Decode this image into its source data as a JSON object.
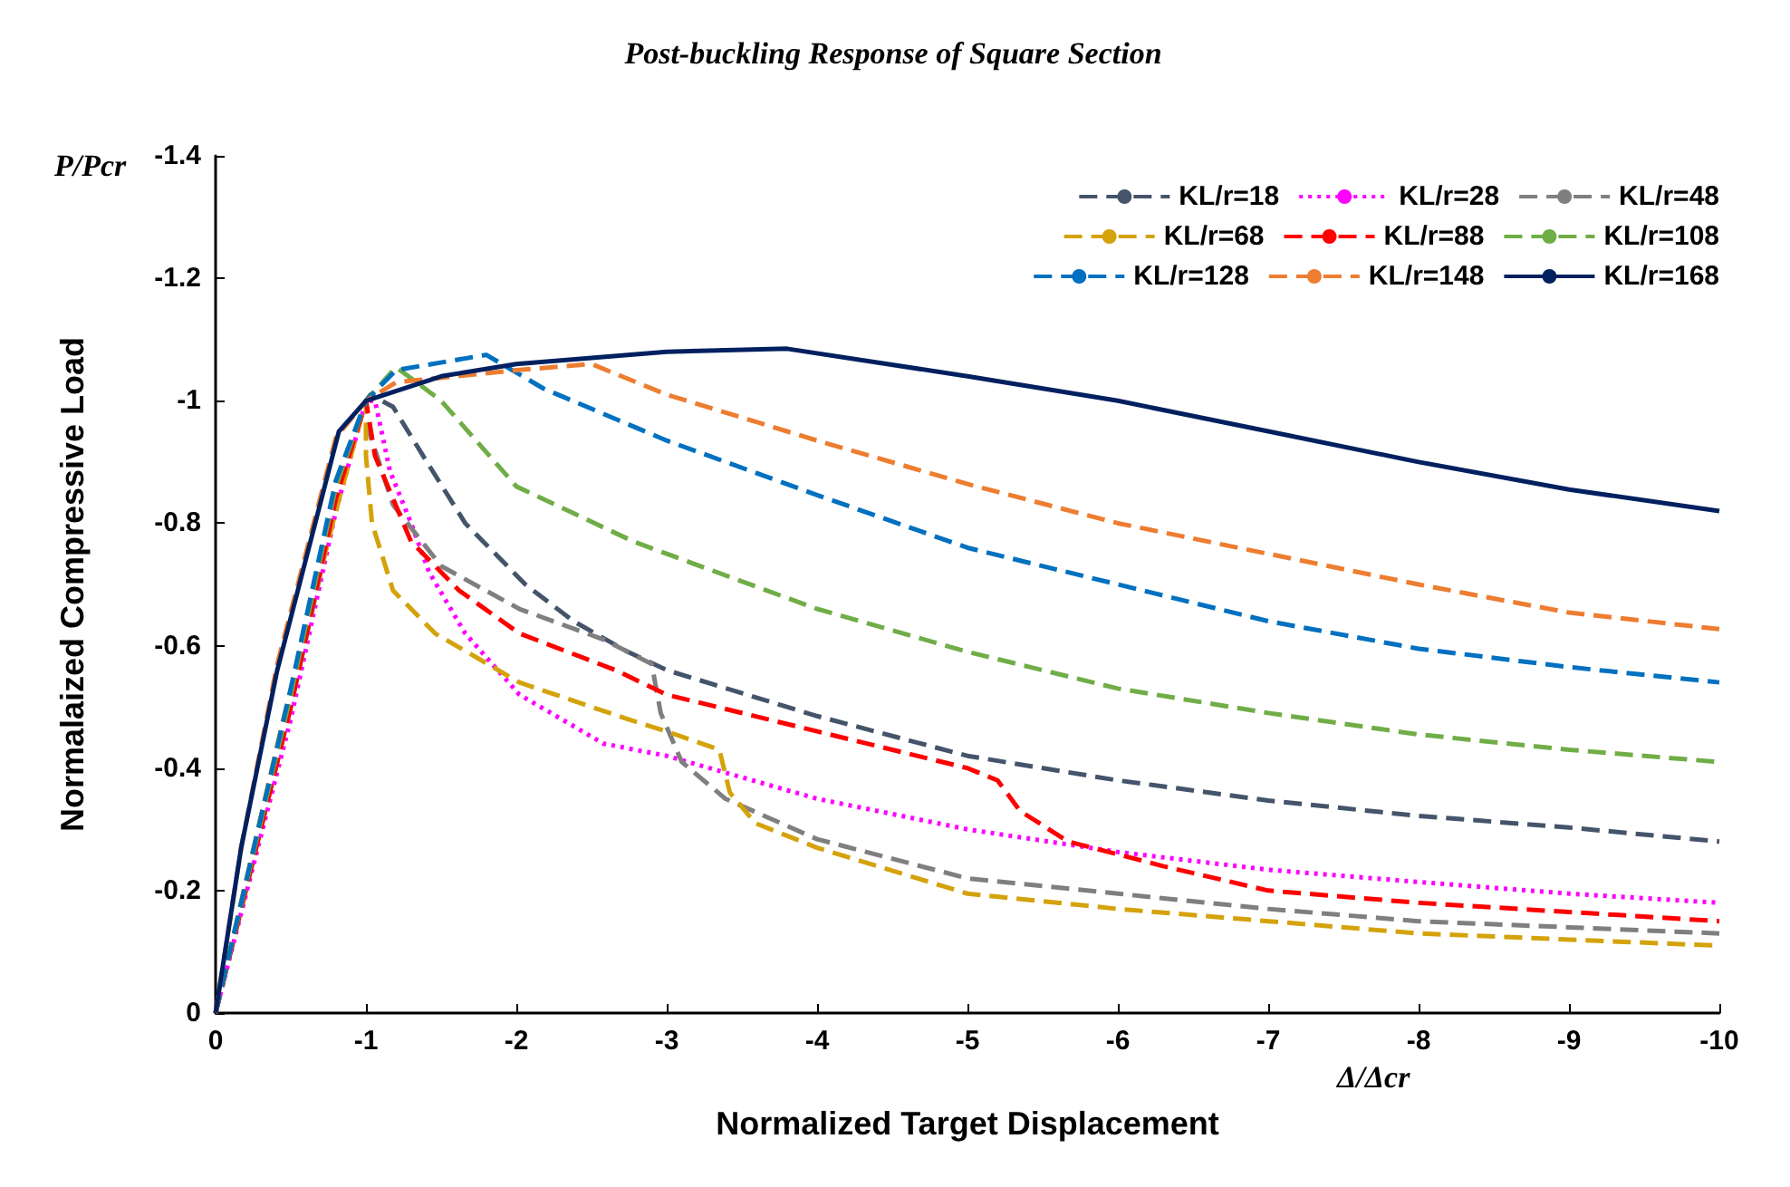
{
  "chart_data": {
    "type": "line",
    "title": "Post-buckling Response of Square Section",
    "xlabel": "Normalized Target Displacement",
    "ylabel": "Normalaized Compressive Load",
    "annotations": [
      "P/Pcr",
      "Δ/Δcr"
    ],
    "xlim": [
      0,
      -10
    ],
    "xticks": [
      0,
      -1,
      -2,
      -3,
      -4,
      -5,
      -6,
      -7,
      -8,
      -9,
      -10
    ],
    "ylim": [
      0,
      -1.4
    ],
    "yticks": [
      0,
      -0.2,
      -0.4,
      -0.6,
      -0.8,
      -1,
      -1.2,
      -1.4
    ],
    "grid": false,
    "legend": "top right",
    "marker": "none",
    "series": [
      {
        "name": "KL/r=18",
        "color": "#44546a",
        "line_style": "dashed",
        "x": [
          0,
          -0.5,
          -0.8,
          -1,
          -1.03,
          -1.18,
          -1.38,
          -1.66,
          -2.06,
          -2.38,
          -2.74,
          -3,
          -4,
          -5,
          -6,
          -7,
          -8,
          -9,
          -10
        ],
        "values": [
          0,
          -0.51,
          -0.84,
          -1,
          -1.01,
          -0.99,
          -0.91,
          -0.8,
          -0.7,
          -0.64,
          -0.59,
          -0.56,
          -0.485,
          -0.42,
          -0.38,
          -0.347,
          -0.322,
          -0.303,
          -0.28
        ]
      },
      {
        "name": "KL/r=28",
        "color": "#ff00ff",
        "line_style": "dotted",
        "x": [
          0,
          -0.5,
          -0.8,
          -1,
          -1.06,
          -1.16,
          -1.3,
          -1.42,
          -1.66,
          -2.02,
          -2.58,
          -3,
          -4,
          -5,
          -6,
          -7,
          -8,
          -9,
          -10
        ],
        "values": [
          0,
          -0.48,
          -0.82,
          -1,
          -1,
          -0.885,
          -0.8,
          -0.72,
          -0.62,
          -0.52,
          -0.44,
          -0.42,
          -0.35,
          -0.3,
          -0.263,
          -0.234,
          -0.214,
          -0.195,
          -0.18
        ]
      },
      {
        "name": "KL/r=48",
        "color": "#7f7f7f",
        "line_style": "dashed",
        "x": [
          0,
          -0.5,
          -0.8,
          -1,
          -1.02,
          -1.18,
          -1.5,
          -2.02,
          -2.58,
          -2.9,
          -2.96,
          -3.1,
          -3.39,
          -4,
          -5,
          -6,
          -7,
          -8,
          -9,
          -10
        ],
        "values": [
          0,
          -0.5,
          -0.83,
          -1,
          -0.95,
          -0.83,
          -0.73,
          -0.66,
          -0.61,
          -0.57,
          -0.49,
          -0.41,
          -0.35,
          -0.284,
          -0.22,
          -0.195,
          -0.17,
          -0.15,
          -0.14,
          -0.13
        ]
      },
      {
        "name": "KL/r=68",
        "color": "#d4a20a",
        "line_style": "dashed",
        "x": [
          0,
          -0.45,
          -0.8,
          -1,
          -1,
          -1.04,
          -1.18,
          -1.46,
          -2.02,
          -2.74,
          -3,
          -3.35,
          -3.42,
          -3.59,
          -4,
          -5,
          -6,
          -7,
          -8,
          -9,
          -10
        ],
        "values": [
          0,
          -0.48,
          -0.82,
          -1,
          -0.91,
          -0.8,
          -0.69,
          -0.62,
          -0.54,
          -0.48,
          -0.46,
          -0.43,
          -0.36,
          -0.31,
          -0.27,
          -0.195,
          -0.17,
          -0.15,
          -0.13,
          -0.12,
          -0.11
        ]
      },
      {
        "name": "KL/r=88",
        "color": "#ff0000",
        "line_style": "dashed",
        "x": [
          0,
          -0.5,
          -0.8,
          -1,
          -1.06,
          -1.3,
          -1.62,
          -2.02,
          -2.66,
          -3,
          -4,
          -5,
          -5.2,
          -5.35,
          -5.67,
          -6.3,
          -7,
          -8,
          -9,
          -10
        ],
        "values": [
          0,
          -0.5,
          -0.84,
          -1,
          -0.91,
          -0.77,
          -0.69,
          -0.62,
          -0.56,
          -0.52,
          -0.46,
          -0.4,
          -0.38,
          -0.33,
          -0.28,
          -0.24,
          -0.2,
          -0.18,
          -0.165,
          -0.15
        ]
      },
      {
        "name": "KL/r=108",
        "color": "#70ad47",
        "line_style": "dashed",
        "x": [
          0,
          -0.5,
          -0.8,
          -1,
          -1.2,
          -1.5,
          -2,
          -2.78,
          -3,
          -4,
          -5,
          -6,
          -7,
          -8,
          -9,
          -10
        ],
        "values": [
          0,
          -0.52,
          -0.86,
          -1,
          -1.055,
          -1,
          -0.86,
          -0.77,
          -0.75,
          -0.66,
          -0.59,
          -0.53,
          -0.49,
          -0.455,
          -0.43,
          -0.41
        ]
      },
      {
        "name": "KL/r=128",
        "color": "#0070c0",
        "line_style": "dashed",
        "x": [
          0,
          -0.5,
          -0.8,
          -1,
          -1.2,
          -1.8,
          -2.18,
          -3,
          -4,
          -5,
          -6,
          -7,
          -8,
          -9,
          -10
        ],
        "values": [
          0,
          -0.53,
          -0.87,
          -1,
          -1.05,
          -1.075,
          -1.02,
          -0.935,
          -0.846,
          -0.76,
          -0.7,
          -0.64,
          -0.595,
          -0.565,
          -0.54
        ]
      },
      {
        "name": "KL/r=148",
        "color": "#ed7d31",
        "line_style": "dashed",
        "x": [
          0,
          -0.17,
          -0.41,
          -0.8,
          -1,
          -1.2,
          -2,
          -2.5,
          -3,
          -4,
          -5,
          -6,
          -7,
          -8,
          -9,
          -10
        ],
        "values": [
          0,
          -0.27,
          -0.57,
          -0.94,
          -1,
          -1.03,
          -1.05,
          -1.06,
          -1.01,
          -0.935,
          -0.864,
          -0.8,
          -0.75,
          -0.7,
          -0.654,
          -0.627
        ]
      },
      {
        "name": "KL/r=168",
        "color": "#002060",
        "line_style": "solid",
        "x": [
          0,
          -0.17,
          -0.41,
          -0.82,
          -1,
          -1.5,
          -2,
          -3,
          -3.8,
          -5,
          -6,
          -7,
          -8,
          -9,
          -10
        ],
        "values": [
          0,
          -0.27,
          -0.56,
          -0.95,
          -1,
          -1.04,
          -1.06,
          -1.08,
          -1.085,
          -1.04,
          -1,
          -0.95,
          -0.9,
          -0.855,
          -0.82
        ]
      }
    ]
  }
}
